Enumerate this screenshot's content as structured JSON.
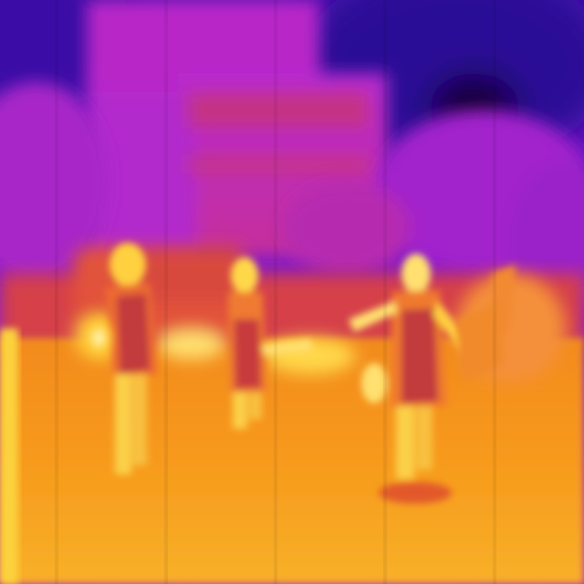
{
  "image": {
    "kind": "thermal-camera-frame",
    "palette": "ironbow",
    "palette_colors": {
      "cold": "#2a0a9a",
      "cool": "#8a1ad0",
      "mid": "#d0309c",
      "warm": "#e8603a",
      "hot": "#f7a21a",
      "hottest": "#fff4a0"
    },
    "subjects": [
      {
        "name": "person-left"
      },
      {
        "name": "person-center"
      },
      {
        "name": "person-right"
      },
      {
        "name": "parked-car"
      },
      {
        "name": "building"
      },
      {
        "name": "background-trees"
      }
    ]
  }
}
